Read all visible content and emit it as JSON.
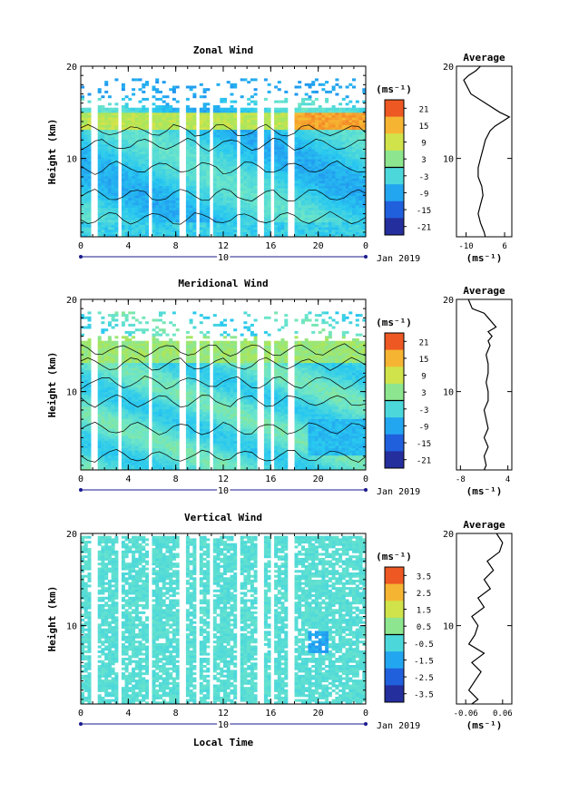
{
  "figure": {
    "xlabel": "Local Time",
    "date_label": "Jan 2019",
    "day_label": "10"
  },
  "chart_data": [
    {
      "type": "heatmap",
      "title": "Zonal Wind",
      "ylabel": "Height (km)",
      "ylim": [
        1.5,
        20
      ],
      "yticks": [
        "10",
        "20"
      ],
      "xlim": [
        0,
        24
      ],
      "xticks": [
        "0",
        "4",
        "8",
        "12",
        "16",
        "20",
        "0"
      ],
      "colorbar": {
        "unit": "(ms⁻¹)",
        "ticks": [
          "21",
          "15",
          "9",
          "3",
          "-3",
          "-9",
          "-15",
          "-21"
        ],
        "range": [
          -24,
          24
        ]
      },
      "profile": {
        "title": "Average",
        "xticks": [
          "-10",
          "6"
        ],
        "xlim": [
          -14,
          9
        ],
        "unit": "(ms⁻¹)",
        "height": [
          1.5,
          2,
          3,
          4,
          5,
          6,
          7,
          8,
          9,
          10,
          11,
          12,
          13,
          13.5,
          14,
          14.5,
          15,
          16,
          17,
          18,
          18.5,
          19,
          19.5,
          20
        ],
        "value": [
          -2,
          -2.5,
          -4,
          -5,
          -4,
          -3,
          -3.5,
          -5,
          -5,
          -4,
          -3,
          -2,
          0,
          2,
          5,
          8,
          4,
          -2,
          -8,
          -10,
          -11,
          -9,
          -6,
          -4
        ]
      }
    },
    {
      "type": "heatmap",
      "title": "Meridional Wind",
      "ylabel": "Height (km)",
      "ylim": [
        1.5,
        20
      ],
      "yticks": [
        "10",
        "20"
      ],
      "xlim": [
        0,
        24
      ],
      "xticks": [
        "0",
        "4",
        "8",
        "12",
        "16",
        "20",
        "0"
      ],
      "colorbar": {
        "unit": "(ms⁻¹)",
        "ticks": [
          "21",
          "15",
          "9",
          "3",
          "-3",
          "-9",
          "-15",
          "-21"
        ],
        "range": [
          -24,
          24
        ]
      },
      "profile": {
        "title": "Average",
        "xticks": [
          "-8",
          "4"
        ],
        "xlim": [
          -9,
          5
        ],
        "unit": "(ms⁻¹)",
        "height": [
          1.5,
          2,
          3,
          4,
          5,
          6,
          7,
          8,
          9,
          10,
          11,
          12,
          13,
          14,
          15,
          15.5,
          16,
          16.5,
          17,
          18,
          18.5,
          19,
          20
        ],
        "value": [
          -2,
          -1.5,
          -2,
          -1,
          -2,
          -1,
          -1.5,
          -2,
          -1,
          -1,
          -1.5,
          -1,
          -1,
          -1.5,
          -0.5,
          -1,
          0,
          -1,
          1,
          -1,
          -2,
          -5,
          -6
        ]
      }
    },
    {
      "type": "heatmap",
      "title": "Vertical Wind",
      "ylabel": "Height (km)",
      "ylim": [
        1.5,
        20
      ],
      "yticks": [
        "10",
        "20"
      ],
      "xlim": [
        0,
        24
      ],
      "xticks": [
        "0",
        "4",
        "8",
        "12",
        "16",
        "20",
        "0"
      ],
      "colorbar": {
        "unit": "(ms⁻¹)",
        "ticks": [
          "3.5",
          "2.5",
          "1.5",
          "0.5",
          "-0.5",
          "-1.5",
          "-2.5",
          "-3.5"
        ],
        "range": [
          -4,
          4
        ]
      },
      "profile": {
        "title": "Average",
        "xticks": [
          "-0.06",
          "0.06"
        ],
        "xlim": [
          -0.09,
          0.09
        ],
        "unit": "(ms⁻¹)",
        "height": [
          1.5,
          2,
          3,
          4,
          5,
          6,
          7,
          8,
          9,
          10,
          11,
          12,
          13,
          14,
          15,
          16,
          17,
          18,
          19,
          20
        ],
        "value": [
          -0.04,
          -0.02,
          -0.05,
          -0.03,
          -0.01,
          -0.04,
          0.0,
          -0.05,
          -0.03,
          -0.02,
          -0.04,
          0.0,
          -0.02,
          0.02,
          0.0,
          0.03,
          0.01,
          0.05,
          0.06,
          0.04
        ]
      }
    }
  ]
}
